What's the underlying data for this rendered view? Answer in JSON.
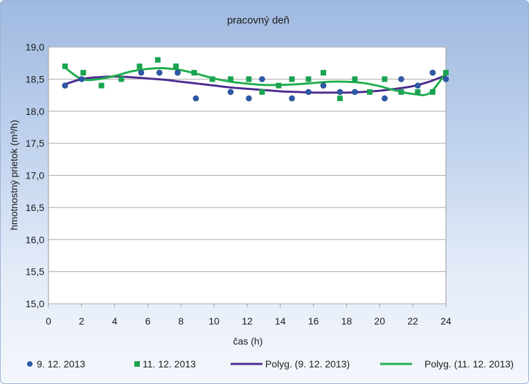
{
  "chart_data": {
    "type": "scatter",
    "title": "pracovný deň",
    "xlabel": "čas (h)",
    "ylabel": "hmotnostný prietok (m³/h)",
    "xlim": [
      0,
      24
    ],
    "ylim": [
      15.0,
      19.0
    ],
    "x_ticks": [
      "0",
      "2",
      "4",
      "6",
      "8",
      "10",
      "12",
      "14",
      "16",
      "18",
      "20",
      "22",
      "24"
    ],
    "y_ticks": [
      "15,0",
      "15,5",
      "16,0",
      "16,5",
      "17,0",
      "17,5",
      "18,0",
      "18,5",
      "19,0"
    ],
    "grid": true,
    "legend_position": "bottom",
    "series": [
      {
        "name": "9. 12. 2013",
        "marker": "circle",
        "color": "#2e5aa8",
        "x": [
          1,
          2,
          5.6,
          6.7,
          7.8,
          8.9,
          11,
          12.1,
          12.9,
          14.7,
          15.7,
          16.6,
          17.6,
          18.5,
          20.3,
          21.3,
          22.3,
          23.2,
          24
        ],
        "y": [
          18.4,
          18.5,
          18.6,
          18.6,
          18.6,
          18.2,
          18.3,
          18.2,
          18.5,
          18.2,
          18.3,
          18.4,
          18.3,
          18.3,
          18.2,
          18.5,
          18.4,
          18.6,
          18.5
        ]
      },
      {
        "name": "11. 12. 2013",
        "marker": "square",
        "color": "#1aa350",
        "x": [
          1,
          2.1,
          3.2,
          4.4,
          5.5,
          6.6,
          7.7,
          8.8,
          9.9,
          11,
          12.1,
          12.9,
          13.9,
          14.7,
          15.7,
          16.6,
          17.6,
          18.5,
          19.4,
          20.3,
          21.3,
          22.3,
          23.2,
          24
        ],
        "y": [
          18.7,
          18.6,
          18.4,
          18.5,
          18.7,
          18.8,
          18.7,
          18.6,
          18.5,
          18.5,
          18.5,
          18.3,
          18.4,
          18.5,
          18.5,
          18.6,
          18.2,
          18.5,
          18.3,
          18.5,
          18.3,
          18.3,
          18.3,
          18.6
        ]
      },
      {
        "name": "Polyg. (9. 12. 2013)",
        "type": "line",
        "color": "#4a2c8f",
        "x": [
          1,
          2,
          3,
          4,
          5,
          6,
          7,
          8,
          9,
          10,
          11,
          12,
          13,
          14,
          15,
          16,
          17,
          18,
          19,
          20,
          21,
          22,
          23,
          24
        ],
        "y": [
          18.42,
          18.5,
          18.53,
          18.54,
          18.53,
          18.51,
          18.49,
          18.46,
          18.43,
          18.4,
          18.37,
          18.35,
          18.33,
          18.31,
          18.3,
          18.29,
          18.29,
          18.29,
          18.3,
          18.32,
          18.35,
          18.39,
          18.46,
          18.56
        ]
      },
      {
        "name": "Polyg. (11. 12. 2013)",
        "type": "line",
        "color": "#1fae4f",
        "x": [
          1,
          2,
          3,
          4,
          5,
          6,
          7,
          8,
          9,
          10,
          11,
          12,
          13,
          14,
          15,
          16,
          17,
          18,
          19,
          20,
          21,
          22,
          23,
          24
        ],
        "y": [
          18.68,
          18.5,
          18.5,
          18.55,
          18.62,
          18.66,
          18.67,
          18.64,
          18.58,
          18.51,
          18.46,
          18.43,
          18.41,
          18.41,
          18.42,
          18.44,
          18.46,
          18.46,
          18.44,
          18.39,
          18.32,
          18.27,
          18.28,
          18.6
        ]
      }
    ]
  }
}
